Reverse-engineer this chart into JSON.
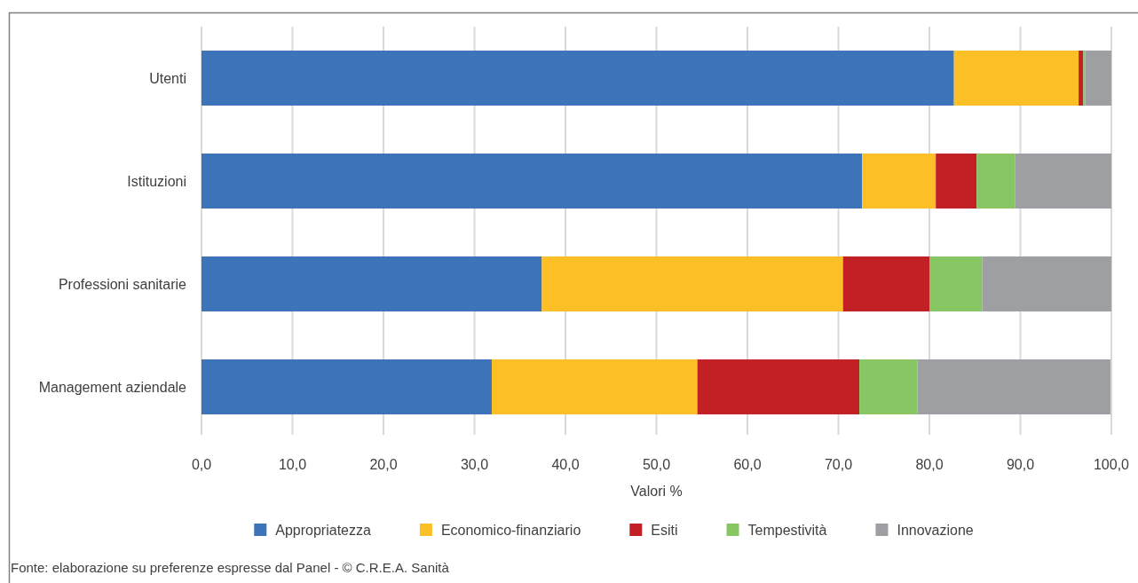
{
  "chart_data": {
    "type": "bar",
    "orientation": "horizontal",
    "stacked": true,
    "categories": [
      "Utenti",
      "Istituzioni",
      "Professioni sanitarie",
      "Management aziendale"
    ],
    "series": [
      {
        "name": "Appropriatezza",
        "color": "#3d73b9",
        "values": [
          82.7,
          72.6,
          37.4,
          31.9
        ]
      },
      {
        "name": "Economico-finanziario",
        "color": "#fdbf26",
        "values": [
          13.7,
          8.1,
          33.1,
          22.6
        ]
      },
      {
        "name": "Esiti",
        "color": "#c32026",
        "values": [
          0.5,
          4.5,
          9.5,
          17.8
        ]
      },
      {
        "name": "Tempestività",
        "color": "#87c663",
        "values": [
          0.2,
          4.2,
          5.8,
          6.4
        ]
      },
      {
        "name": "Innovazione",
        "color": "#9e9fa2",
        "values": [
          2.9,
          10.6,
          14.2,
          21.2
        ]
      }
    ],
    "xlim": [
      0,
      100
    ],
    "xticks": [
      {
        "value": 0,
        "label": "0,0"
      },
      {
        "value": 10,
        "label": "10,0"
      },
      {
        "value": 20,
        "label": "20,0"
      },
      {
        "value": 30,
        "label": "30,0"
      },
      {
        "value": 40,
        "label": "40,0"
      },
      {
        "value": 50,
        "label": "50,0"
      },
      {
        "value": 60,
        "label": "60,0"
      },
      {
        "value": 70,
        "label": "70,0"
      },
      {
        "value": 80,
        "label": "80,0"
      },
      {
        "value": 90,
        "label": "90,0"
      },
      {
        "value": 100,
        "label": "100,0"
      }
    ],
    "xlabel": "Valori %",
    "grid": "x",
    "legend": "bottom",
    "annotations": [
      "Fonte: elaborazione su preferenze espresse dal Panel - © C.R.E.A. Sanità"
    ]
  }
}
